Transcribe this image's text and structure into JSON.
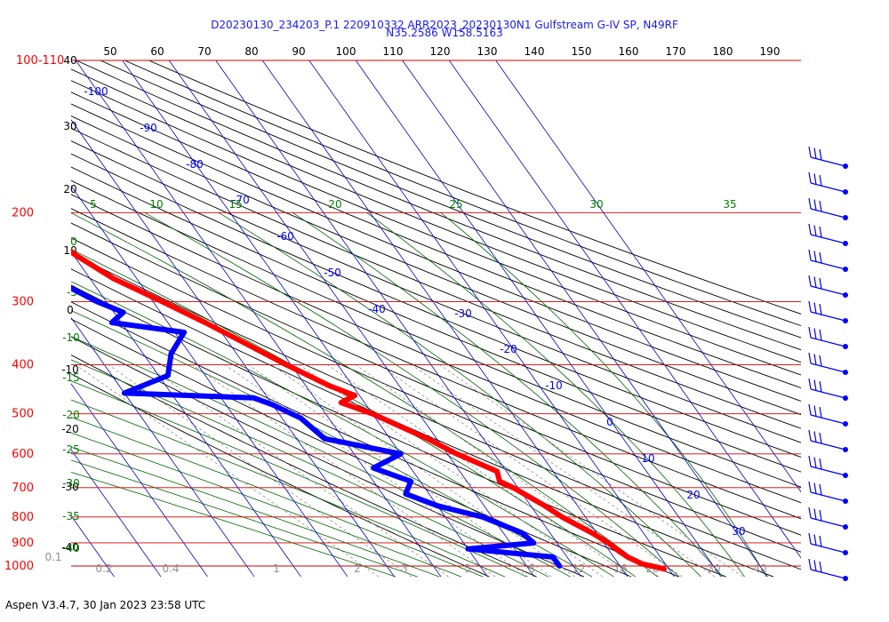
{
  "header": {
    "line1": "D20230130_234203_P.1 220910332 ARR2023_20230130N1 Gulfstream G-IV SP, N49RF",
    "line2": "N35.2586 W158.5163"
  },
  "footer": {
    "text": "Aspen V3.4.7, 30 Jan 2023  23:58 UTC"
  },
  "colors": {
    "temperature": "#ff0000",
    "dewpoint": "#0000ff",
    "isobar": "#cc0000",
    "isotherm": "#0000cc",
    "dry_adiabat": "#000000",
    "moist_adiabat": "#006400",
    "mixing_ratio": "#808080",
    "title": "#1a1aff"
  },
  "chart_data": {
    "type": "skew-t",
    "pressure_labels": [
      "100-110",
      "200",
      "300",
      "400",
      "500",
      "600",
      "700",
      "800",
      "900",
      "1000"
    ],
    "theta_labels": [
      "50",
      "60",
      "70",
      "80",
      "90",
      "100",
      "110",
      "120",
      "130",
      "140",
      "150",
      "160",
      "170",
      "180",
      "190"
    ],
    "temp_isotherm_labels": [
      "-100",
      "-90",
      "-80",
      "-70",
      "-60",
      "-50",
      "-40",
      "-30",
      "-20",
      "-10",
      "0",
      "10",
      "20",
      "30"
    ],
    "height_labels": [
      "40",
      "30",
      "20",
      "10",
      "0",
      "-10",
      "-20",
      "-30",
      "-40"
    ],
    "moist_labels_top": [
      "5",
      "10",
      "15",
      "20",
      "25",
      "30",
      "35"
    ],
    "moist_labels_left": [
      "0",
      "-5",
      "-10",
      "-15",
      "-20",
      "-25",
      "-30",
      "-35",
      "-40"
    ],
    "mixing_ratio_labels": [
      "0.1",
      "0.2",
      "0.4",
      "1",
      "2",
      "3",
      "5",
      "8",
      "12",
      "16",
      "20",
      "30",
      "40"
    ],
    "temperature_profile": [
      {
        "p": 180,
        "t": -56
      },
      {
        "p": 195,
        "t": -55
      },
      {
        "p": 205,
        "t": -58
      },
      {
        "p": 215,
        "t": -60
      },
      {
        "p": 240,
        "t": -60
      },
      {
        "p": 270,
        "t": -55
      },
      {
        "p": 300,
        "t": -48
      },
      {
        "p": 330,
        "t": -42
      },
      {
        "p": 360,
        "t": -37
      },
      {
        "p": 400,
        "t": -31
      },
      {
        "p": 440,
        "t": -25
      },
      {
        "p": 460,
        "t": -21
      },
      {
        "p": 475,
        "t": -25
      },
      {
        "p": 500,
        "t": -20
      },
      {
        "p": 560,
        "t": -12
      },
      {
        "p": 600,
        "t": -8
      },
      {
        "p": 650,
        "t": -2
      },
      {
        "p": 680,
        "t": -3
      },
      {
        "p": 700,
        "t": -1
      },
      {
        "p": 760,
        "t": 3
      },
      {
        "p": 800,
        "t": 5
      },
      {
        "p": 860,
        "t": 9
      },
      {
        "p": 900,
        "t": 11
      },
      {
        "p": 935,
        "t": 12
      },
      {
        "p": 960,
        "t": 13
      },
      {
        "p": 990,
        "t": 15
      },
      {
        "p": 1013,
        "t": 19
      }
    ],
    "dewpoint_profile": [
      {
        "p": 205,
        "td": -85
      },
      {
        "p": 230,
        "td": -78
      },
      {
        "p": 260,
        "td": -71
      },
      {
        "p": 280,
        "td": -66
      },
      {
        "p": 300,
        "td": -62
      },
      {
        "p": 315,
        "td": -58
      },
      {
        "p": 330,
        "td": -62
      },
      {
        "p": 345,
        "td": -48
      },
      {
        "p": 380,
        "td": -54
      },
      {
        "p": 420,
        "td": -58
      },
      {
        "p": 455,
        "td": -70
      },
      {
        "p": 465,
        "td": -43
      },
      {
        "p": 480,
        "td": -40
      },
      {
        "p": 510,
        "td": -36
      },
      {
        "p": 560,
        "td": -34
      },
      {
        "p": 600,
        "td": -20
      },
      {
        "p": 640,
        "td": -28
      },
      {
        "p": 680,
        "td": -22
      },
      {
        "p": 720,
        "td": -25
      },
      {
        "p": 760,
        "td": -20
      },
      {
        "p": 800,
        "td": -12
      },
      {
        "p": 860,
        "td": -6
      },
      {
        "p": 900,
        "td": -5
      },
      {
        "p": 925,
        "td": -20
      },
      {
        "p": 960,
        "td": -3
      },
      {
        "p": 1000,
        "td": -3
      }
    ],
    "wind_barbs_count": 17
  }
}
